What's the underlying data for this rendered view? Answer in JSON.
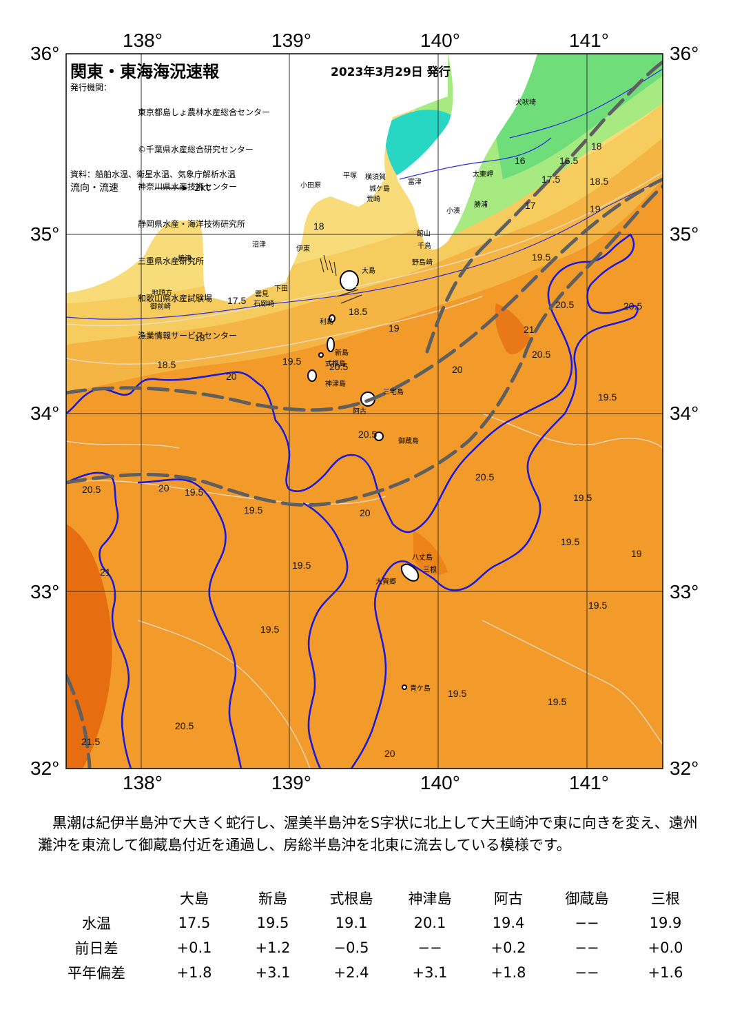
{
  "map": {
    "title": "関東・東海海況速報",
    "date": "2023年3月29日 発行",
    "issuer_label": "発行機関：",
    "issuers": [
      "東京都島しょ農林水産総合センター",
      "©千葉県水産総合研究センター",
      "神奈川県水産技術センター",
      "静岡県水産・海洋技術研究所",
      "三重県水産研究所",
      "和歌山県水産試験場",
      "漁業情報サービスセンター"
    ],
    "source": "資料：船舶水温、衛星水温、気象庁解析水温",
    "flow_label": "流向・流速",
    "flow_scale": "2kt",
    "lon_labels": [
      "138°",
      "139°",
      "140°",
      "141°"
    ],
    "lat_labels": [
      "36°",
      "35°",
      "34°",
      "33°",
      "32°"
    ],
    "places": [
      "犬吠埼",
      "太東岬",
      "勝浦",
      "小湊",
      "館山",
      "千鳥",
      "野島崎",
      "富津",
      "横須賀",
      "城ケ島",
      "荒崎",
      "平塚",
      "小田原",
      "伊東",
      "大島",
      "利島",
      "新島",
      "式根島",
      "神津島",
      "三宅島",
      "御蔵島",
      "八丈島",
      "大賀郷",
      "三根",
      "青ケ島",
      "沼津",
      "焼津",
      "地頭方",
      "御前崎",
      "雲見",
      "下田",
      "石廊崎",
      "阿古"
    ],
    "isotherms": [
      "16",
      "16.5",
      "17",
      "17.5",
      "18",
      "18.5",
      "19",
      "19.5",
      "20",
      "20.5",
      "21",
      "21.5"
    ],
    "colors": {
      "kuroshio_axis": "#1a1adc",
      "warm": "#f08a1a",
      "cool": "#f6d470",
      "cold": "#8fe87a",
      "coldest": "#20d6c8",
      "land": "#ffffff",
      "dashed_line": "#5f5f5f"
    }
  },
  "summary": "黒潮は紀伊半島沖で大きく蛇行し、渥美半島沖をS字状に北上して大王崎沖で東に向きを変え、遠州灘沖を東流して御蔵島付近を通過し、房総半島沖を北東に流去している模様です。",
  "table": {
    "columns": [
      "大島",
      "新島",
      "式根島",
      "神津島",
      "阿古",
      "御蔵島",
      "三根"
    ],
    "rows": [
      {
        "label": "水温",
        "values": [
          "17.5",
          "19.5",
          "19.1",
          "20.1",
          "19.4",
          "−−",
          "19.9"
        ]
      },
      {
        "label": "前日差",
        "values": [
          "+0.1",
          "+1.2",
          "−0.5",
          "−−",
          "+0.2",
          "−−",
          "+0.0"
        ]
      },
      {
        "label": "平年偏差",
        "values": [
          "+1.8",
          "+3.1",
          "+2.4",
          "+3.1",
          "+1.8",
          "−−",
          "+1.6"
        ]
      }
    ]
  }
}
